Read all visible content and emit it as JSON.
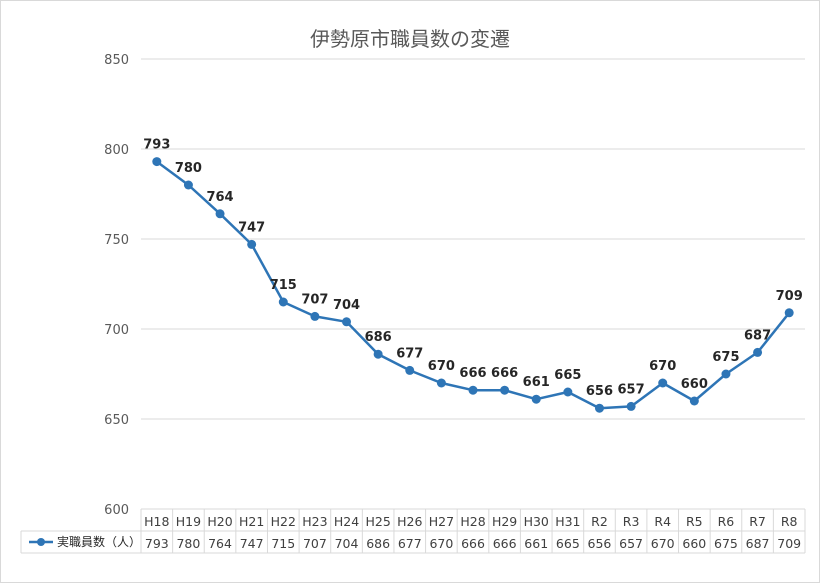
{
  "chart_data": {
    "type": "line",
    "title": "伊勢原市職員数の変遷",
    "xlabel": "",
    "ylabel": "",
    "ylim": [
      600,
      850
    ],
    "yticks": [
      600,
      650,
      700,
      750,
      800,
      850
    ],
    "categories": [
      "H18",
      "H19",
      "H20",
      "H21",
      "H22",
      "H23",
      "H24",
      "H25",
      "H26",
      "H27",
      "H28",
      "H29",
      "H30",
      "H31",
      "R2",
      "R3",
      "R4",
      "R5",
      "R6",
      "R7",
      "R8"
    ],
    "series": [
      {
        "name": "実職員数（人）",
        "color": "#2e75b6",
        "values": [
          793,
          780,
          764,
          747,
          715,
          707,
          704,
          686,
          677,
          670,
          666,
          666,
          661,
          665,
          656,
          657,
          670,
          660,
          675,
          687,
          709
        ]
      }
    ],
    "grid": true,
    "legend": "data-table"
  }
}
